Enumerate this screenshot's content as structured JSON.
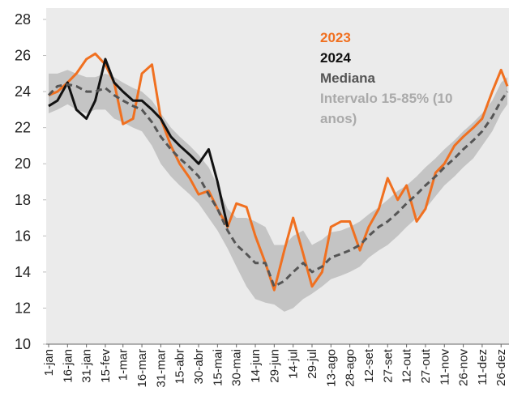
{
  "chart_data": {
    "type": "line",
    "x": [
      1,
      8,
      16,
      23,
      31,
      38,
      46,
      53,
      60,
      68,
      75,
      83,
      90,
      98,
      105,
      113,
      120,
      128,
      135,
      143,
      150,
      158,
      165,
      173,
      180,
      188,
      195,
      203,
      210,
      218,
      225,
      233,
      240,
      248,
      255,
      263,
      270,
      278,
      285,
      293,
      300,
      308,
      315,
      323,
      330,
      338,
      345,
      353,
      360,
      365
    ],
    "xlim": [
      1,
      365
    ],
    "xticks": [
      {
        "value": 1,
        "label": "1-jan"
      },
      {
        "value": 16,
        "label": "16-jan"
      },
      {
        "value": 31,
        "label": "31-jan"
      },
      {
        "value": 46,
        "label": "15-fev"
      },
      {
        "value": 60,
        "label": "1-mar"
      },
      {
        "value": 75,
        "label": "16-mar"
      },
      {
        "value": 90,
        "label": "31-mar"
      },
      {
        "value": 105,
        "label": "15-abr"
      },
      {
        "value": 120,
        "label": "30-abr"
      },
      {
        "value": 135,
        "label": "15-mai"
      },
      {
        "value": 150,
        "label": "30-mai"
      },
      {
        "value": 165,
        "label": "14-jun"
      },
      {
        "value": 180,
        "label": "29-jun"
      },
      {
        "value": 195,
        "label": "14-jul"
      },
      {
        "value": 210,
        "label": "29-jul"
      },
      {
        "value": 225,
        "label": "13-ago"
      },
      {
        "value": 240,
        "label": "28-ago"
      },
      {
        "value": 255,
        "label": "12-set"
      },
      {
        "value": 270,
        "label": "27-set"
      },
      {
        "value": 285,
        "label": "12-out"
      },
      {
        "value": 300,
        "label": "27-out"
      },
      {
        "value": 315,
        "label": "11-nov"
      },
      {
        "value": 330,
        "label": "26-nov"
      },
      {
        "value": 345,
        "label": "11-dez"
      },
      {
        "value": 360,
        "label": "26-dez"
      }
    ],
    "ylim": [
      10,
      28
    ],
    "yticks": [
      10,
      12,
      14,
      16,
      18,
      20,
      22,
      24,
      26,
      28
    ],
    "band": {
      "name": "Intervalo 15-85% (10 anos)",
      "color": "#c4c4c4",
      "lower": [
        22.8,
        23,
        23.3,
        23,
        22.8,
        23,
        23,
        22.5,
        22.3,
        22,
        21.8,
        21,
        20,
        19.3,
        18.8,
        18.3,
        17.8,
        17,
        16.3,
        15.3,
        14.3,
        13.2,
        12.5,
        12.3,
        12.2,
        11.8,
        12,
        12.5,
        12.8,
        13.2,
        13.6,
        13.8,
        14,
        14.3,
        14.8,
        15.2,
        15.5,
        16,
        16.5,
        17,
        17.5,
        18.2,
        18.8,
        19.3,
        19.8,
        20.3,
        21,
        21.8,
        22.8,
        23.3
      ],
      "upper": [
        25,
        25,
        25.2,
        25,
        24.8,
        24.8,
        25,
        24.8,
        24.5,
        24.2,
        24,
        23.5,
        22.8,
        22,
        21.5,
        21,
        20.5,
        19.8,
        18.8,
        17.5,
        17,
        17,
        16.8,
        16.5,
        15.5,
        15.5,
        16,
        16.3,
        15.5,
        15.8,
        16.2,
        16.3,
        16.5,
        16.8,
        17.2,
        17.6,
        18,
        18.5,
        18.8,
        19.3,
        19.8,
        20.3,
        20.8,
        21.3,
        21.8,
        22.3,
        22.8,
        23.5,
        24.5,
        24.8
      ]
    },
    "series": [
      {
        "name": "2023",
        "color": "#f07020",
        "values": [
          23.8,
          24,
          24.5,
          25,
          25.8,
          26.1,
          25.5,
          24.5,
          22.2,
          22.5,
          25,
          25.5,
          22.5,
          21,
          20,
          19.2,
          18.3,
          18.5,
          17.5,
          16.5,
          17.8,
          17.6,
          16,
          14.5,
          13,
          15.2,
          17,
          15,
          13.2,
          14,
          16.5,
          16.8,
          16.8,
          15.2,
          16.5,
          17.5,
          19.2,
          18,
          18.8,
          16.8,
          17.5,
          19.5,
          20,
          21,
          21.5,
          22,
          22.5,
          24,
          25.2,
          24.3
        ]
      },
      {
        "name": "2024",
        "color": "#111111",
        "values": [
          23.2,
          23.5,
          24.5,
          23,
          22.5,
          23.5,
          25.8,
          24.5,
          24,
          23.5,
          23.5,
          23,
          22.5,
          21.5,
          21,
          20.5,
          20,
          20.8,
          19,
          16.5,
          null,
          null,
          null,
          null,
          null,
          null,
          null,
          null,
          null,
          null,
          null,
          null,
          null,
          null,
          null,
          null,
          null,
          null,
          null,
          null,
          null,
          null,
          null,
          null,
          null,
          null,
          null,
          null,
          null,
          null
        ]
      },
      {
        "name": "Mediana",
        "color": "#555555",
        "dashed": true,
        "values": [
          23.8,
          24.3,
          24.4,
          24.3,
          24,
          24,
          24.2,
          23.8,
          23.5,
          23.2,
          23,
          22.3,
          21.5,
          20.8,
          20.3,
          19.8,
          19.3,
          18.3,
          17.5,
          16.3,
          15.5,
          15,
          14.5,
          14.5,
          13.2,
          13.5,
          14,
          14.5,
          14,
          14.3,
          14.8,
          15,
          15.2,
          15.5,
          16,
          16.5,
          16.8,
          17.3,
          17.8,
          18.3,
          18.8,
          19.3,
          19.8,
          20.3,
          20.8,
          21.3,
          21.8,
          22.6,
          23.5,
          24
        ]
      }
    ]
  }
}
